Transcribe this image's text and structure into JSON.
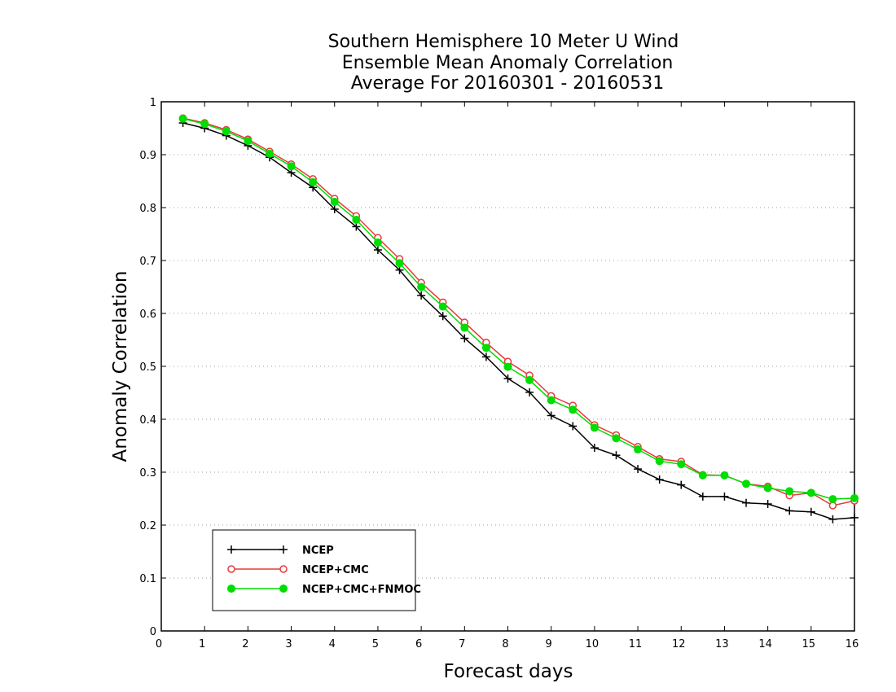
{
  "chart_data": {
    "type": "line",
    "title": [
      "Southern Hemisphere 10 Meter U Wind",
      "Ensemble Mean Anomaly Correlation",
      "Average For 20160301 - 20160531"
    ],
    "xlabel": "Forecast days",
    "ylabel": "Anomaly Correlation",
    "xlim": [
      0,
      16
    ],
    "ylim": [
      0,
      1
    ],
    "xticks": [
      0,
      1,
      2,
      3,
      4,
      5,
      6,
      7,
      8,
      9,
      10,
      11,
      12,
      13,
      14,
      15,
      16
    ],
    "yticks": [
      0,
      0.1,
      0.2,
      0.3,
      0.4,
      0.5,
      0.6,
      0.7,
      0.8,
      0.9,
      1
    ],
    "ytick_labels": [
      "0",
      "0.1",
      "0.2",
      "0.3",
      "0.4",
      "0.5",
      "0.6",
      "0.7",
      "0.8",
      "0.9",
      "1"
    ],
    "grid": "horizontal dotted",
    "legend_position": "bottom-left",
    "x": [
      0.5,
      1,
      1.5,
      2,
      2.5,
      3,
      3.5,
      4,
      4.5,
      5,
      5.5,
      6,
      6.5,
      7,
      7.5,
      8,
      8.5,
      9,
      9.5,
      10,
      10.5,
      11,
      11.5,
      12,
      12.5,
      13,
      13.5,
      14,
      14.5,
      15,
      15.5,
      16
    ],
    "series": [
      {
        "name": "NCEP",
        "color": "#000000",
        "marker": "plus",
        "values": [
          0.96,
          0.95,
          0.936,
          0.917,
          0.895,
          0.866,
          0.838,
          0.797,
          0.764,
          0.72,
          0.682,
          0.634,
          0.595,
          0.553,
          0.518,
          0.477,
          0.451,
          0.407,
          0.387,
          0.346,
          0.332,
          0.306,
          0.286,
          0.276,
          0.254,
          0.254,
          0.242,
          0.24,
          0.227,
          0.225,
          0.211,
          0.214
        ]
      },
      {
        "name": "NCEP+CMC",
        "color": "#e8383a",
        "marker": "open-circle",
        "values": [
          0.969,
          0.96,
          0.947,
          0.929,
          0.906,
          0.882,
          0.854,
          0.817,
          0.784,
          0.743,
          0.703,
          0.658,
          0.621,
          0.583,
          0.545,
          0.509,
          0.483,
          0.444,
          0.426,
          0.389,
          0.37,
          0.348,
          0.325,
          0.32,
          0.295,
          0.294,
          0.278,
          0.273,
          0.256,
          0.261,
          0.237,
          0.246
        ]
      },
      {
        "name": "NCEP+CMC+FNMOC",
        "color": "#00dd00",
        "marker": "filled-circle",
        "values": [
          0.968,
          0.958,
          0.944,
          0.926,
          0.902,
          0.878,
          0.848,
          0.811,
          0.777,
          0.734,
          0.695,
          0.65,
          0.613,
          0.573,
          0.535,
          0.499,
          0.474,
          0.436,
          0.418,
          0.384,
          0.364,
          0.343,
          0.321,
          0.315,
          0.294,
          0.294,
          0.278,
          0.27,
          0.264,
          0.261,
          0.249,
          0.251
        ]
      }
    ]
  }
}
